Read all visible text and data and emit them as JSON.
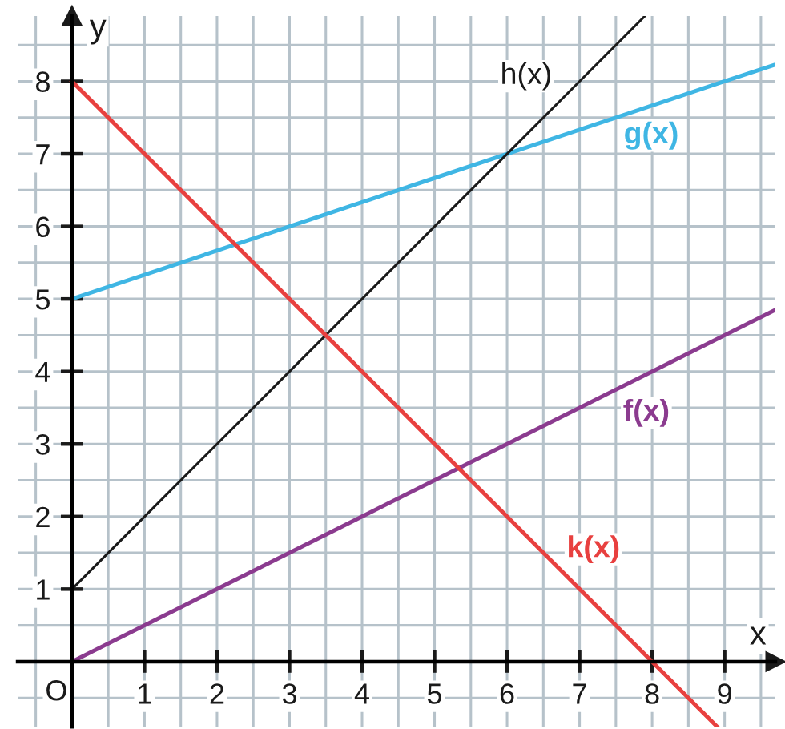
{
  "chart_data": {
    "type": "line",
    "xlabel": "x",
    "ylabel": "y",
    "xlim": [
      -0.75,
      9.7
    ],
    "ylim": [
      -0.9,
      8.9
    ],
    "xticks": [
      {
        "value": -0.5,
        "label": null
      },
      {
        "value": 0,
        "label": null
      },
      {
        "value": 0.5,
        "label": null
      },
      1,
      {
        "value": 1.5,
        "label": null
      },
      2,
      {
        "value": 2.5,
        "label": null
      },
      3,
      {
        "value": 3.5,
        "label": null
      },
      4,
      {
        "value": 4.5,
        "label": null
      },
      5,
      {
        "value": 5.5,
        "label": null
      },
      6,
      {
        "value": 6.5,
        "label": null
      },
      7,
      {
        "value": 7.5,
        "label": null
      },
      8,
      {
        "value": 8.5,
        "label": null
      },
      9,
      {
        "value": 9.5,
        "label": null
      }
    ],
    "yticks": [
      {
        "value": -0.5,
        "label": null
      },
      {
        "value": 0,
        "label": null
      },
      {
        "value": 0.5,
        "label": null
      },
      1,
      {
        "value": 1.5,
        "label": null
      },
      2,
      {
        "value": 2.5,
        "label": null
      },
      3,
      {
        "value": 3.5,
        "label": null
      },
      4,
      {
        "value": 4.5,
        "label": null
      },
      5,
      {
        "value": 5.5,
        "label": null
      },
      6,
      {
        "value": 6.5,
        "label": null
      },
      7,
      {
        "value": 7.5,
        "label": null
      },
      8,
      {
        "value": 8.5,
        "label": null
      }
    ],
    "grid": true,
    "series": [
      {
        "name": "f(x)",
        "color": "#8b3b8f",
        "x": [
          0,
          2,
          4,
          6,
          8,
          9.7
        ],
        "values": [
          0,
          1,
          2,
          3,
          4,
          4.85
        ]
      },
      {
        "name": "g(x)",
        "color": "#3fb6e4",
        "x": [
          0,
          3,
          6,
          9,
          9.7
        ],
        "values": [
          5,
          6,
          7,
          8,
          8.23
        ]
      },
      {
        "name": "h(x)",
        "color": "#1a1a1a",
        "x": [
          0,
          1,
          2,
          3,
          4,
          5,
          6,
          7,
          7.9
        ],
        "values": [
          1,
          2,
          3,
          4,
          5,
          6,
          7,
          8,
          8.9
        ]
      },
      {
        "name": "k(x)",
        "color": "#e8403f",
        "x": [
          0,
          1,
          2,
          3,
          4,
          5,
          6,
          7,
          8,
          8.9
        ],
        "values": [
          8,
          7,
          6,
          5,
          4,
          3,
          2,
          1,
          0,
          -0.9
        ]
      }
    ],
    "annotations": [
      {
        "text": "O",
        "x": 0,
        "y": 0
      }
    ]
  }
}
